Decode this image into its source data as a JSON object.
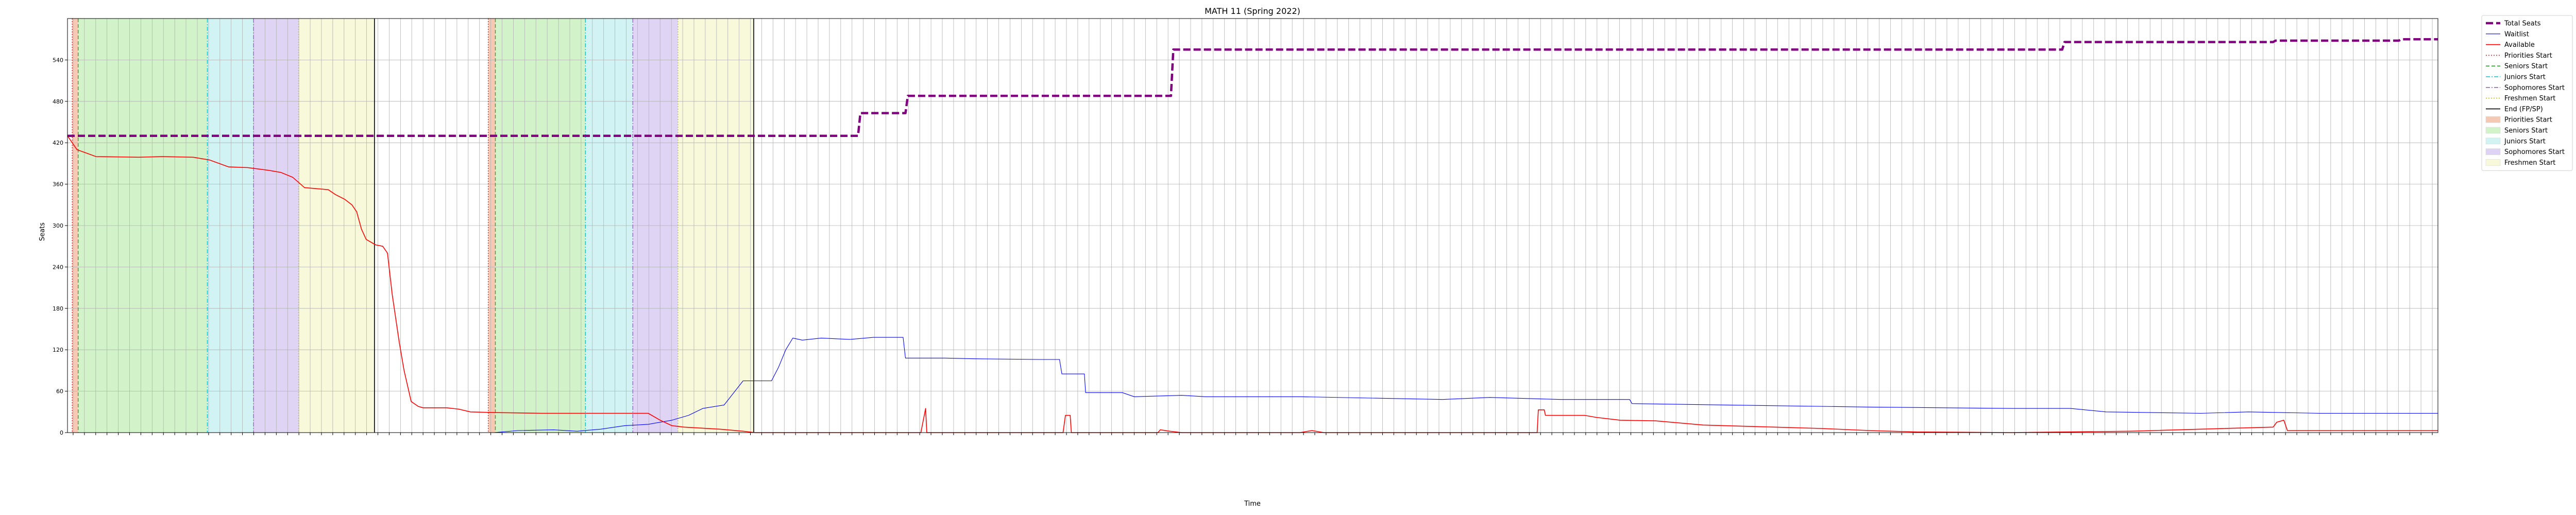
{
  "chart_data": {
    "type": "line",
    "title": "MATH 11 (Spring 2022)",
    "xlabel": "Time",
    "ylabel": "Seats",
    "ylim": [
      0,
      600
    ],
    "yticks": [
      0,
      60,
      120,
      180,
      240,
      300,
      360,
      420,
      480,
      540
    ],
    "grid": true,
    "legend_position": "outside right, top",
    "x_tick_count": 210,
    "step_series": [
      {
        "name": "Total Seats",
        "color": "#800080",
        "style": "dashed-thick",
        "points": [
          [
            0,
            430
          ],
          [
            0.3335,
            430
          ],
          [
            0.3345,
            463
          ],
          [
            0.3535,
            463
          ],
          [
            0.3545,
            488
          ],
          [
            0.4655,
            488
          ],
          [
            0.4665,
            555
          ],
          [
            0.8415,
            555
          ],
          [
            0.8425,
            566
          ],
          [
            0.9305,
            566
          ],
          [
            0.9315,
            568
          ],
          [
            0.9835,
            568
          ],
          [
            0.9845,
            570
          ],
          [
            1,
            570
          ]
        ]
      },
      {
        "name": "Waitlist",
        "color": "#0000ff",
        "style": "thin",
        "points": [
          [
            0,
            0
          ],
          [
            0.18,
            0
          ],
          [
            0.19,
            3
          ],
          [
            0.205,
            4
          ],
          [
            0.215,
            2
          ],
          [
            0.225,
            5
          ],
          [
            0.235,
            10
          ],
          [
            0.245,
            12
          ],
          [
            0.255,
            18
          ],
          [
            0.262,
            25
          ],
          [
            0.268,
            35
          ],
          [
            0.277,
            40
          ],
          [
            0.285,
            75
          ],
          [
            0.297,
            75
          ],
          [
            0.3,
            95
          ],
          [
            0.303,
            120
          ],
          [
            0.306,
            137
          ],
          [
            0.31,
            134
          ],
          [
            0.318,
            137
          ],
          [
            0.33,
            135
          ],
          [
            0.34,
            138
          ],
          [
            0.3525,
            138
          ],
          [
            0.3535,
            108
          ],
          [
            0.37,
            108
          ],
          [
            0.382,
            107
          ],
          [
            0.41,
            106
          ],
          [
            0.4185,
            106
          ],
          [
            0.4195,
            85
          ],
          [
            0.429,
            85
          ],
          [
            0.4295,
            58
          ],
          [
            0.445,
            58
          ],
          [
            0.45,
            52
          ],
          [
            0.47,
            54
          ],
          [
            0.48,
            52
          ],
          [
            0.52,
            52
          ],
          [
            0.55,
            50
          ],
          [
            0.58,
            48
          ],
          [
            0.6,
            51
          ],
          [
            0.63,
            48
          ],
          [
            0.659,
            48
          ],
          [
            0.66,
            42
          ],
          [
            0.7,
            40
          ],
          [
            0.76,
            37
          ],
          [
            0.82,
            35
          ],
          [
            0.845,
            35
          ],
          [
            0.86,
            30
          ],
          [
            0.9,
            28
          ],
          [
            0.92,
            30
          ],
          [
            0.95,
            28
          ],
          [
            0.99,
            28
          ],
          [
            1,
            28
          ]
        ]
      },
      {
        "name": "Available",
        "color": "#ff0000",
        "style": "solid",
        "points": [
          [
            0,
            430
          ],
          [
            0.004,
            410
          ],
          [
            0.008,
            405
          ],
          [
            0.012,
            400
          ],
          [
            0.03,
            399
          ],
          [
            0.04,
            400
          ],
          [
            0.053,
            399
          ],
          [
            0.06,
            395
          ],
          [
            0.068,
            385
          ],
          [
            0.076,
            384
          ],
          [
            0.085,
            380
          ],
          [
            0.09,
            377
          ],
          [
            0.095,
            370
          ],
          [
            0.1,
            355
          ],
          [
            0.11,
            352
          ],
          [
            0.113,
            345
          ],
          [
            0.117,
            338
          ],
          [
            0.12,
            330
          ],
          [
            0.122,
            320
          ],
          [
            0.124,
            295
          ],
          [
            0.126,
            280
          ],
          [
            0.13,
            272
          ],
          [
            0.133,
            270
          ],
          [
            0.135,
            260
          ],
          [
            0.137,
            200
          ],
          [
            0.14,
            130
          ],
          [
            0.142,
            90
          ],
          [
            0.145,
            45
          ],
          [
            0.148,
            38
          ],
          [
            0.15,
            36
          ],
          [
            0.16,
            36
          ],
          [
            0.165,
            34
          ],
          [
            0.17,
            30
          ],
          [
            0.18,
            29
          ],
          [
            0.2,
            28
          ],
          [
            0.245,
            28
          ],
          [
            0.25,
            18
          ],
          [
            0.255,
            10
          ],
          [
            0.26,
            8
          ],
          [
            0.275,
            5
          ],
          [
            0.285,
            2
          ],
          [
            0.29,
            0
          ],
          [
            0.36,
            0
          ],
          [
            0.362,
            35
          ],
          [
            0.3625,
            0
          ],
          [
            0.42,
            0
          ],
          [
            0.421,
            25
          ],
          [
            0.423,
            25
          ],
          [
            0.4235,
            0
          ],
          [
            0.46,
            0
          ],
          [
            0.461,
            4
          ],
          [
            0.465,
            2
          ],
          [
            0.47,
            0
          ],
          [
            0.52,
            0
          ],
          [
            0.525,
            3
          ],
          [
            0.53,
            0
          ],
          [
            0.62,
            0
          ],
          [
            0.6205,
            33
          ],
          [
            0.623,
            33
          ],
          [
            0.6235,
            25
          ],
          [
            0.64,
            25
          ],
          [
            0.645,
            22
          ],
          [
            0.655,
            18
          ],
          [
            0.67,
            17
          ],
          [
            0.69,
            11
          ],
          [
            0.72,
            8
          ],
          [
            0.74,
            6
          ],
          [
            0.76,
            3
          ],
          [
            0.78,
            1
          ],
          [
            0.82,
            0
          ],
          [
            0.87,
            2
          ],
          [
            0.9,
            5
          ],
          [
            0.9305,
            8
          ],
          [
            0.932,
            15
          ],
          [
            0.935,
            18
          ],
          [
            0.9365,
            3
          ],
          [
            1,
            3
          ]
        ]
      }
    ],
    "vlines": [
      {
        "name": "Priorities Start",
        "color": "#d62728",
        "style": "dotted",
        "x": [
          0.002,
          0.1775
        ]
      },
      {
        "name": "Seniors Start",
        "color": "#2ca02c",
        "style": "dashed",
        "x": [
          0.0045,
          0.1805
        ]
      },
      {
        "name": "Juniors Start",
        "color": "#17becf",
        "style": "dashdot",
        "x": [
          0.059,
          0.2185
        ]
      },
      {
        "name": "Sophomores Start",
        "color": "#9467bd",
        "style": "dashdot",
        "x": [
          0.0785,
          0.2385
        ]
      },
      {
        "name": "Freshmen Start",
        "color": "#bcbd22",
        "style": "dotted",
        "x": [
          0.0975,
          0.2575
        ]
      },
      {
        "name": "End (FP/SP)",
        "color": "#000000",
        "style": "solid",
        "x": [
          0.1295,
          0.2895
        ]
      }
    ],
    "spans": [
      {
        "name": "Priorities Start",
        "color": "#f4b79b",
        "ranges": [
          [
            0.002,
            0.0045
          ],
          [
            0.1775,
            0.1805
          ]
        ]
      },
      {
        "name": "Seniors Start",
        "color": "#c3efb7",
        "ranges": [
          [
            0.0045,
            0.059
          ],
          [
            0.1805,
            0.2185
          ]
        ]
      },
      {
        "name": "Juniors Start",
        "color": "#c2eff0",
        "ranges": [
          [
            0.059,
            0.0785
          ],
          [
            0.2185,
            0.2385
          ]
        ]
      },
      {
        "name": "Sophomores Start",
        "color": "#d5c5f2",
        "ranges": [
          [
            0.0785,
            0.0975
          ],
          [
            0.2385,
            0.2575
          ]
        ]
      },
      {
        "name": "Freshmen Start",
        "color": "#f6f6cf",
        "ranges": [
          [
            0.0975,
            0.1295
          ],
          [
            0.2575,
            0.2895
          ]
        ]
      }
    ],
    "legend": [
      {
        "label": "Total Seats",
        "kind": "line",
        "color": "#800080",
        "style": "dashed-thick"
      },
      {
        "label": "Waitlist",
        "kind": "line",
        "color": "#0000ff",
        "style": "thin"
      },
      {
        "label": "Available",
        "kind": "line",
        "color": "#ff0000",
        "style": "solid"
      },
      {
        "label": "Priorities Start",
        "kind": "line",
        "color": "#d62728",
        "style": "dotted"
      },
      {
        "label": "Seniors Start",
        "kind": "line",
        "color": "#2ca02c",
        "style": "dashed"
      },
      {
        "label": "Juniors Start",
        "kind": "line",
        "color": "#17becf",
        "style": "dashdot"
      },
      {
        "label": "Sophomores Start",
        "kind": "line",
        "color": "#9467bd",
        "style": "dashdot"
      },
      {
        "label": "Freshmen Start",
        "kind": "line",
        "color": "#bcbd22",
        "style": "dotted"
      },
      {
        "label": "End (FP/SP)",
        "kind": "line",
        "color": "#000000",
        "style": "solid"
      },
      {
        "label": "Priorities Start",
        "kind": "patch",
        "color": "#f4b79b"
      },
      {
        "label": "Seniors Start",
        "kind": "patch",
        "color": "#c3efb7"
      },
      {
        "label": "Juniors Start",
        "kind": "patch",
        "color": "#c2eff0"
      },
      {
        "label": "Sophomores Start",
        "kind": "patch",
        "color": "#d5c5f2"
      },
      {
        "label": "Freshmen Start",
        "kind": "patch",
        "color": "#f6f6cf"
      }
    ]
  }
}
